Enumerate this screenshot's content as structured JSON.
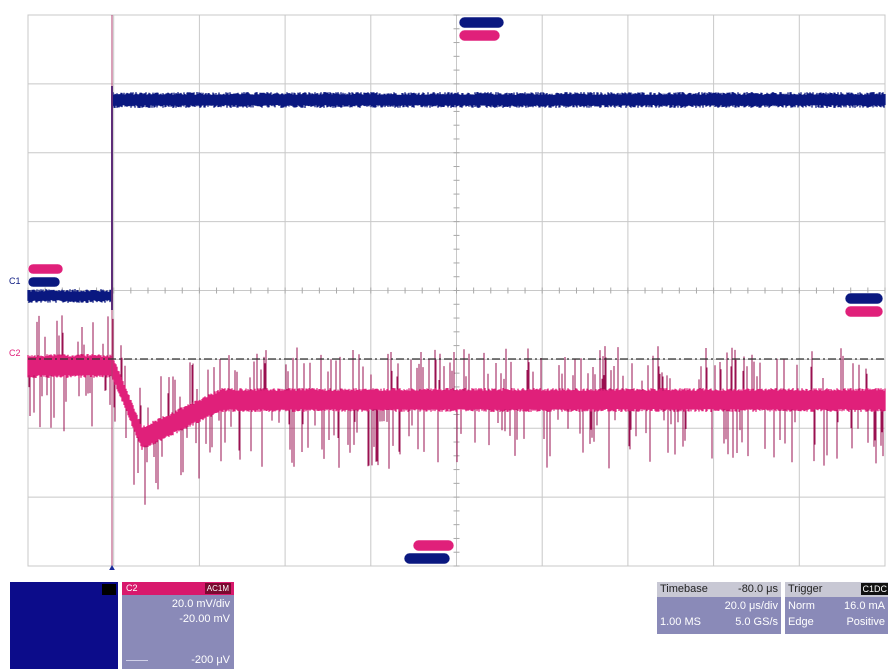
{
  "screen": {
    "background": "#ffffff",
    "grid_color": "#c8c8c8",
    "channel_colors": {
      "C1": "#0a1880",
      "C2": "#e0207a"
    },
    "trigger_line_color": "#303030"
  },
  "markers": {
    "c1_ground_label": "C1",
    "c2_ground_label": "C2",
    "trigger_position_icon": "triangle-up-icon"
  },
  "channel1_panel": {
    "icon": "channel-1-descriptor"
  },
  "channel2_panel": {
    "code": "C2",
    "coupling": "AC1M",
    "volts_per_div": "20.0 mV/div",
    "offset": "-20.00 mV",
    "bandwidth_icon": "bandwidth-limit-icon",
    "extra": "-200 μV"
  },
  "timebase_panel": {
    "label": "Timebase",
    "delay": "-80.0 μs",
    "time_per_div": "20.0 μs/div",
    "samples": "1.00 MS",
    "sample_rate": "5.0 GS/s"
  },
  "trigger_panel": {
    "label": "Trigger",
    "channel_badge": "C1DC",
    "mode": "Norm",
    "level": "16.0 mA",
    "type": "Edge",
    "slope": "Positive"
  }
}
